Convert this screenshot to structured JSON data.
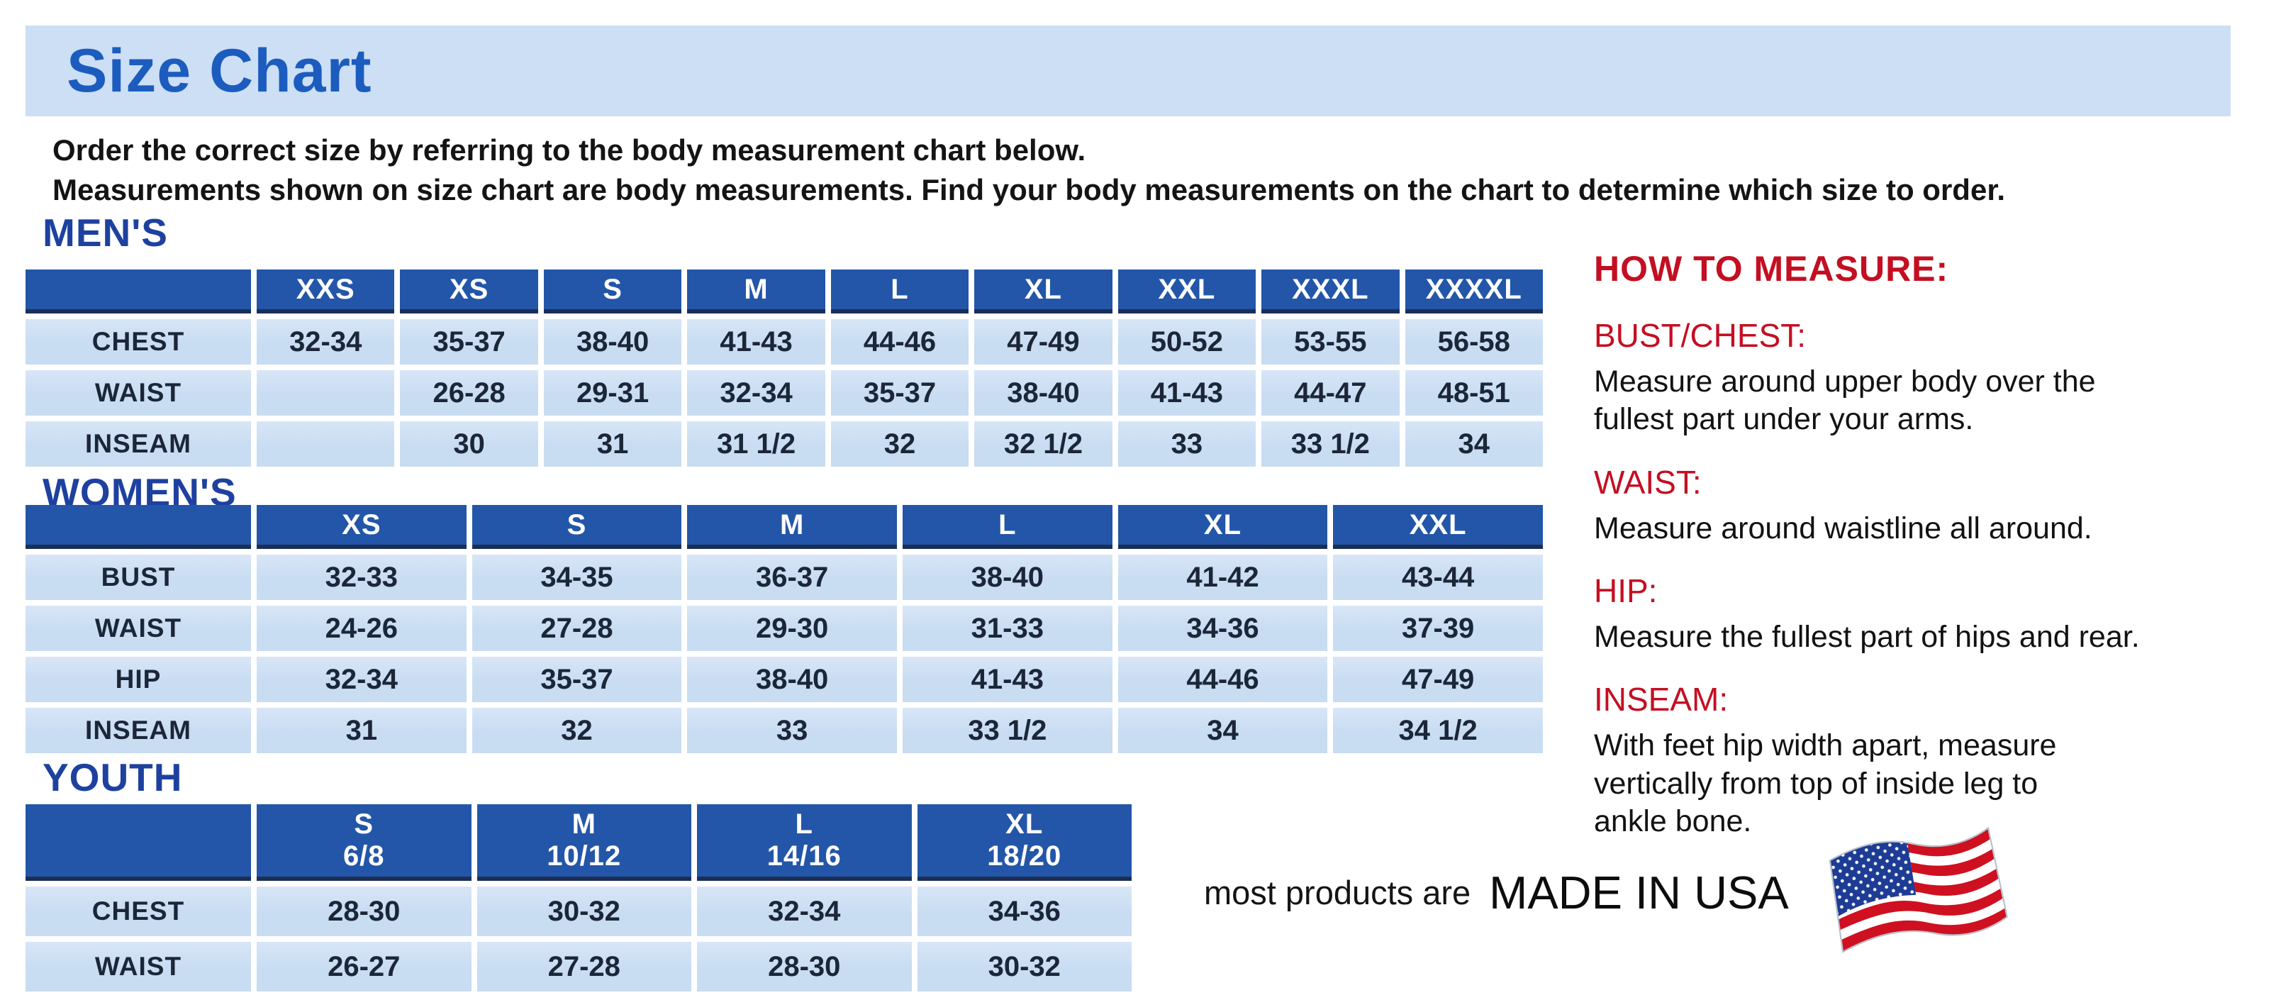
{
  "page": {
    "title": "Size Chart",
    "intro_line1": "Order the correct size by referring to the body measurement chart below.",
    "intro_line2": "Measurements shown on size chart are body measurements.  Find your body measurements on the chart to determine which size to order."
  },
  "tables": {
    "mens": {
      "section_title": "MEN'S",
      "columns": [
        "XXS",
        "XS",
        "S",
        "M",
        "L",
        "XL",
        "XXL",
        "XXXL",
        "XXXXL"
      ],
      "rows": [
        {
          "label": "CHEST",
          "values": [
            "32-34",
            "35-37",
            "38-40",
            "41-43",
            "44-46",
            "47-49",
            "50-52",
            "53-55",
            "56-58"
          ]
        },
        {
          "label": "WAIST",
          "values": [
            "",
            "26-28",
            "29-31",
            "32-34",
            "35-37",
            "38-40",
            "41-43",
            "44-47",
            "48-51"
          ]
        },
        {
          "label": "INSEAM",
          "values": [
            "",
            "30",
            "31",
            "31 1/2",
            "32",
            "32 1/2",
            "33",
            "33 1/2",
            "34"
          ]
        }
      ]
    },
    "womens": {
      "section_title": "WOMEN'S",
      "columns": [
        "XS",
        "S",
        "M",
        "L",
        "XL",
        "XXL"
      ],
      "rows": [
        {
          "label": "BUST",
          "values": [
            "32-33",
            "34-35",
            "36-37",
            "38-40",
            "41-42",
            "43-44"
          ]
        },
        {
          "label": "WAIST",
          "values": [
            "24-26",
            "27-28",
            "29-30",
            "31-33",
            "34-36",
            "37-39"
          ]
        },
        {
          "label": "HIP",
          "values": [
            "32-34",
            "35-37",
            "38-40",
            "41-43",
            "44-46",
            "47-49"
          ]
        },
        {
          "label": "INSEAM",
          "values": [
            "31",
            "32",
            "33",
            "33 1/2",
            "34",
            "34 1/2"
          ]
        }
      ]
    },
    "youth": {
      "section_title": "YOUTH",
      "columns": [
        "S\n6/8",
        "M\n10/12",
        "L\n14/16",
        "XL\n18/20"
      ],
      "rows": [
        {
          "label": "CHEST",
          "values": [
            "28-30",
            "30-32",
            "32-34",
            "34-36"
          ]
        },
        {
          "label": "WAIST",
          "values": [
            "26-27",
            "27-28",
            "28-30",
            "30-32"
          ]
        }
      ]
    }
  },
  "how_to_measure": {
    "title": "HOW TO MEASURE:",
    "items": [
      {
        "label": "BUST/CHEST:",
        "text": "Measure around upper body over the\nfullest part under your arms."
      },
      {
        "label": "WAIST:",
        "text": "Measure around waistline all around."
      },
      {
        "label": "HIP:",
        "text": "Measure the fullest part of hips and rear."
      },
      {
        "label": "INSEAM:",
        "text": "With feet hip width apart, measure\nvertically from top of inside leg to\nankle bone."
      }
    ]
  },
  "footer": {
    "prefix": "most products are",
    "emphasis": "MADE IN USA",
    "flag_icon": "usa-flag-icon"
  },
  "colors": {
    "title_blue": "#1c5cbe",
    "heading_blue": "#1e419f",
    "header_blue": "#2356a8",
    "cell_blue": "#c8dcf2",
    "banner_bg": "#ccdff5",
    "accent_red": "#c40f22",
    "flag_red": "#cf1020",
    "flag_blue": "#1d3c96",
    "text_dark": "#1b2638"
  }
}
